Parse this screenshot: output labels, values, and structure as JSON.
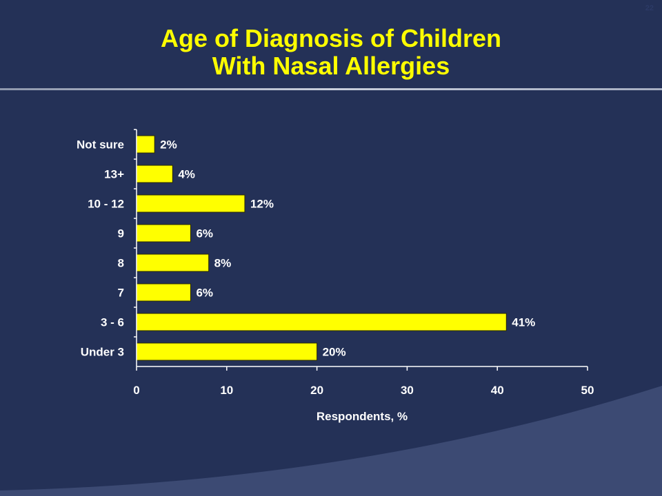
{
  "slide": {
    "number": "22",
    "title_line1": "Age of Diagnosis of Children",
    "title_line2": "With Nasal Allergies"
  },
  "colors": {
    "background": "#243157",
    "bar": "#ffff00",
    "title": "#ffff00",
    "text": "#ffffff"
  },
  "chart_data": {
    "type": "bar",
    "orientation": "horizontal",
    "title": "Age of Diagnosis of Children With Nasal Allergies",
    "categories": [
      "Not sure",
      "13+",
      "10 - 12",
      "9",
      "8",
      "7",
      "3 - 6",
      "Under 3"
    ],
    "values": [
      2,
      4,
      12,
      6,
      8,
      6,
      41,
      20
    ],
    "value_labels": [
      "2%",
      "4%",
      "12%",
      "6%",
      "8%",
      "6%",
      "41%",
      "20%"
    ],
    "xlabel": "Respondents, %",
    "ylabel": "",
    "xlim": [
      0,
      50
    ],
    "xticks": [
      0,
      10,
      20,
      30,
      40,
      50
    ],
    "grid": false,
    "legend": "none"
  }
}
